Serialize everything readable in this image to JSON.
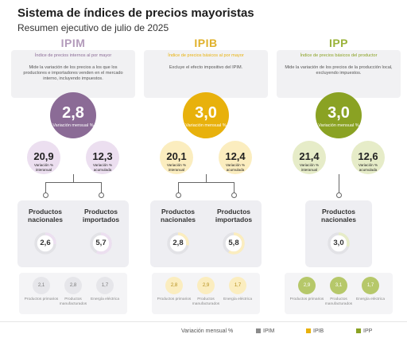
{
  "title": "Sistema de índices de precios mayoristas",
  "subtitle": "Resumen ejecutivo de julio de 2025",
  "chart_data": {
    "type": "infographic",
    "series": [
      {
        "name": "IPIM",
        "color": "#8b6b96",
        "light": "#ecdff0",
        "panel_text": "#b39bbb",
        "header": "Índice de precios internos al por mayor",
        "description": "Mide la variación de los precios a los que los productores e importadores venden en el mercado interno, incluyendo impuestos.",
        "monthly": "2,8",
        "monthly_label": "Variación mensual %",
        "interannual": "20,9",
        "interannual_label": "Variación % interanual",
        "cumulative": "12,3",
        "cumulative_label": "Variación % acumulada",
        "products": [
          {
            "label": "Productos nacionales",
            "value": "2,6",
            "num": 2.6
          },
          {
            "label": "Productos importados",
            "value": "5,7",
            "num": 5.7
          }
        ],
        "sub": [
          {
            "label": "Productos primarios",
            "value": "2,1"
          },
          {
            "label": "Productos manufacturados",
            "value": "2,8"
          },
          {
            "label": "Energía eléctrica",
            "value": "1,7"
          }
        ]
      },
      {
        "name": "IPIB",
        "color": "#e8b10c",
        "light": "#fbedbf",
        "panel_text": "#e0b12a",
        "header": "Índice de precios básicos al por mayor",
        "description": "Excluye el efecto impositivo del IPIM.",
        "monthly": "3,0",
        "monthly_label": "Variación mensual %",
        "interannual": "20,1",
        "interannual_label": "Variación % interanual",
        "cumulative": "12,4",
        "cumulative_label": "Variación % acumulada",
        "products": [
          {
            "label": "Productos nacionales",
            "value": "2,8",
            "num": 2.8
          },
          {
            "label": "Productos importados",
            "value": "5,8",
            "num": 5.8
          }
        ],
        "sub": [
          {
            "label": "Productos primarios",
            "value": "2,8"
          },
          {
            "label": "Productos manufacturados",
            "value": "2,9"
          },
          {
            "label": "Energía eléctrica",
            "value": "1,7"
          }
        ]
      },
      {
        "name": "IPP",
        "color": "#8aa223",
        "light": "#e6ecc8",
        "panel_text": "#9ab33a",
        "header": "Índice de precios básicos del productor",
        "description": "Mide la variación de los precios de la producción local, excluyendo impuestos.",
        "monthly": "3,0",
        "monthly_label": "Variación mensual %",
        "interannual": "21,4",
        "interannual_label": "Variación % interanual",
        "cumulative": "12,6",
        "cumulative_label": "Variación % acumulada",
        "products": [
          {
            "label": "Productos nacionales",
            "value": "3,0",
            "num": 3.0
          }
        ],
        "sub": [
          {
            "label": "Productos primarios",
            "value": "2,9"
          },
          {
            "label": "Productos manufacturados",
            "value": "3,1"
          },
          {
            "label": "Energía eléctrica",
            "value": "1,7"
          }
        ]
      }
    ],
    "legend": {
      "monthly": "Variación mensual %",
      "items": [
        {
          "name": "IPIM",
          "color": "#8b8b8b"
        },
        {
          "name": "IPIB",
          "color": "#e8b10c"
        },
        {
          "name": "IPP",
          "color": "#8aa223"
        }
      ]
    }
  }
}
